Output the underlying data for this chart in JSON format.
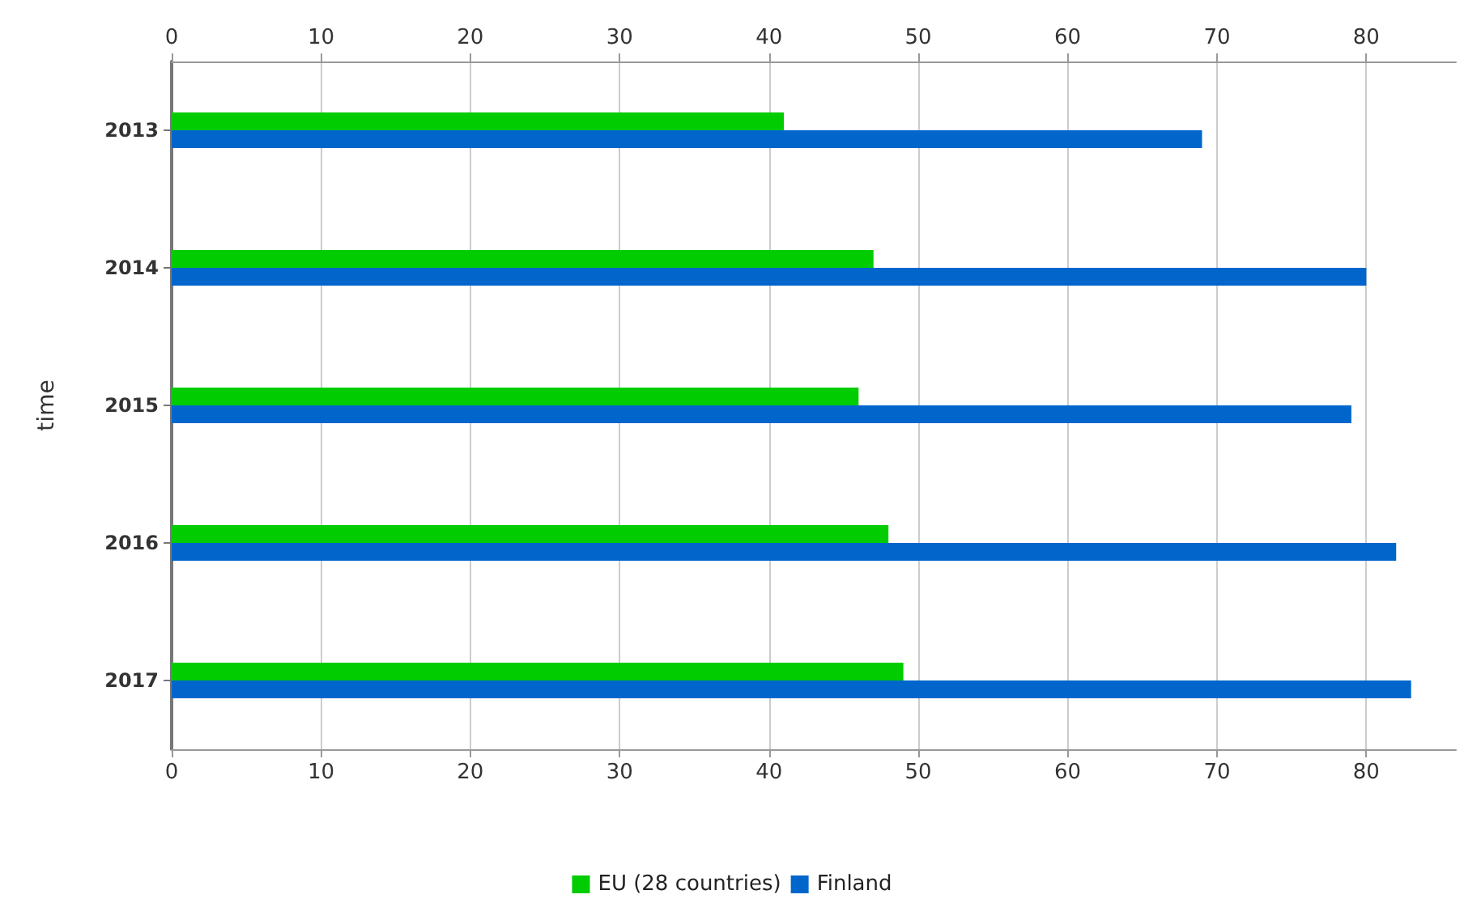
{
  "chart_data": {
    "type": "bar",
    "orientation": "horizontal",
    "ylabel": "time",
    "categories": [
      "2013",
      "2014",
      "2015",
      "2016",
      "2017"
    ],
    "series": [
      {
        "name": "EU (28 countries)",
        "color": "#00cc00",
        "values": [
          41,
          47,
          46,
          48,
          49
        ]
      },
      {
        "name": "Finland",
        "color": "#0066cc",
        "values": [
          69,
          80,
          79,
          82,
          83
        ]
      }
    ],
    "xlim": [
      0,
      86
    ],
    "xticks": [
      0,
      10,
      20,
      30,
      40,
      50,
      60,
      70,
      80
    ],
    "x2lim": [
      0,
      86
    ],
    "x2ticks": [
      0,
      10,
      20,
      30,
      40,
      50,
      60,
      70,
      80
    ],
    "grid": "x",
    "legend": "bottom"
  }
}
